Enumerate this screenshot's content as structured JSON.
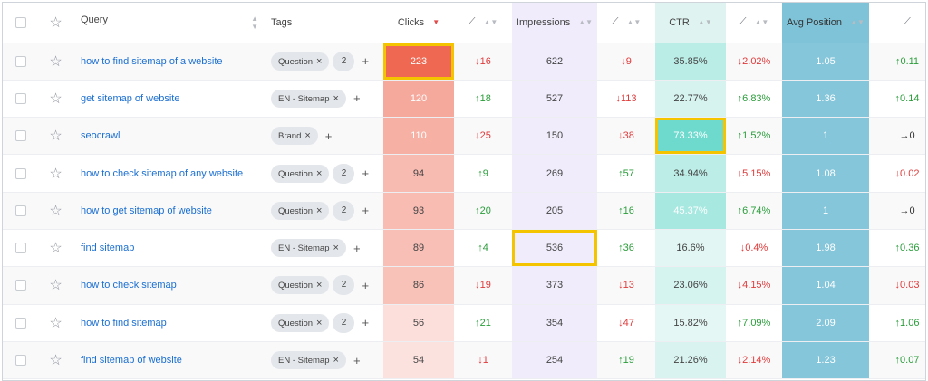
{
  "header": {
    "query": "Query",
    "tags": "Tags",
    "clicks": "Clicks",
    "impressions": "Impressions",
    "ctr": "CTR",
    "avg_position": "Avg Position",
    "trend_icon": "chart-trend-icon"
  },
  "colors": {
    "highlight": "#f5c400",
    "link": "#1b6fd1",
    "up": "#2a9d3a",
    "down": "#e03a3a"
  },
  "rows": [
    {
      "query": "how to find sitemap of a website",
      "tag": "Question",
      "tag_count": "2",
      "clicks": "223",
      "clicks_change": "↓16",
      "impressions": "622",
      "impressions_change": "↓9",
      "ctr": "35.85%",
      "ctr_change": "↓2.02%",
      "position": "1.05",
      "position_change": "↑0.11"
    },
    {
      "query": "get sitemap of website",
      "tag": "EN - Sitemap",
      "tag_count": "",
      "clicks": "120",
      "clicks_change": "↑18",
      "impressions": "527",
      "impressions_change": "↓113",
      "ctr": "22.77%",
      "ctr_change": "↑6.83%",
      "position": "1.36",
      "position_change": "↑0.14"
    },
    {
      "query": "seocrawl",
      "tag": "Brand",
      "tag_count": "",
      "clicks": "110",
      "clicks_change": "↓25",
      "impressions": "150",
      "impressions_change": "↓38",
      "ctr": "73.33%",
      "ctr_change": "↑1.52%",
      "position": "1",
      "position_change": "→0"
    },
    {
      "query": "how to check sitemap of any website",
      "tag": "Question",
      "tag_count": "2",
      "clicks": "94",
      "clicks_change": "↑9",
      "impressions": "269",
      "impressions_change": "↑57",
      "ctr": "34.94%",
      "ctr_change": "↓5.15%",
      "position": "1.08",
      "position_change": "↓0.02"
    },
    {
      "query": "how to get sitemap of website",
      "tag": "Question",
      "tag_count": "2",
      "clicks": "93",
      "clicks_change": "↑20",
      "impressions": "205",
      "impressions_change": "↑16",
      "ctr": "45.37%",
      "ctr_change": "↑6.74%",
      "position": "1",
      "position_change": "→0"
    },
    {
      "query": "find sitemap",
      "tag": "EN - Sitemap",
      "tag_count": "",
      "clicks": "89",
      "clicks_change": "↑4",
      "impressions": "536",
      "impressions_change": "↑36",
      "ctr": "16.6%",
      "ctr_change": "↓0.4%",
      "position": "1.98",
      "position_change": "↑0.36"
    },
    {
      "query": "how to check sitemap",
      "tag": "Question",
      "tag_count": "2",
      "clicks": "86",
      "clicks_change": "↓19",
      "impressions": "373",
      "impressions_change": "↓13",
      "ctr": "23.06%",
      "ctr_change": "↓4.15%",
      "position": "1.04",
      "position_change": "↓0.03"
    },
    {
      "query": "how to find sitemap",
      "tag": "Question",
      "tag_count": "2",
      "clicks": "56",
      "clicks_change": "↑21",
      "impressions": "354",
      "impressions_change": "↓47",
      "ctr": "15.82%",
      "ctr_change": "↑7.09%",
      "position": "2.09",
      "position_change": "↑1.06"
    },
    {
      "query": "find sitemap of website",
      "tag": "EN - Sitemap",
      "tag_count": "",
      "clicks": "54",
      "clicks_change": "↓1",
      "impressions": "254",
      "impressions_change": "↑19",
      "ctr": "21.26%",
      "ctr_change": "↓2.14%",
      "position": "1.23",
      "position_change": "↑0.07"
    }
  ]
}
